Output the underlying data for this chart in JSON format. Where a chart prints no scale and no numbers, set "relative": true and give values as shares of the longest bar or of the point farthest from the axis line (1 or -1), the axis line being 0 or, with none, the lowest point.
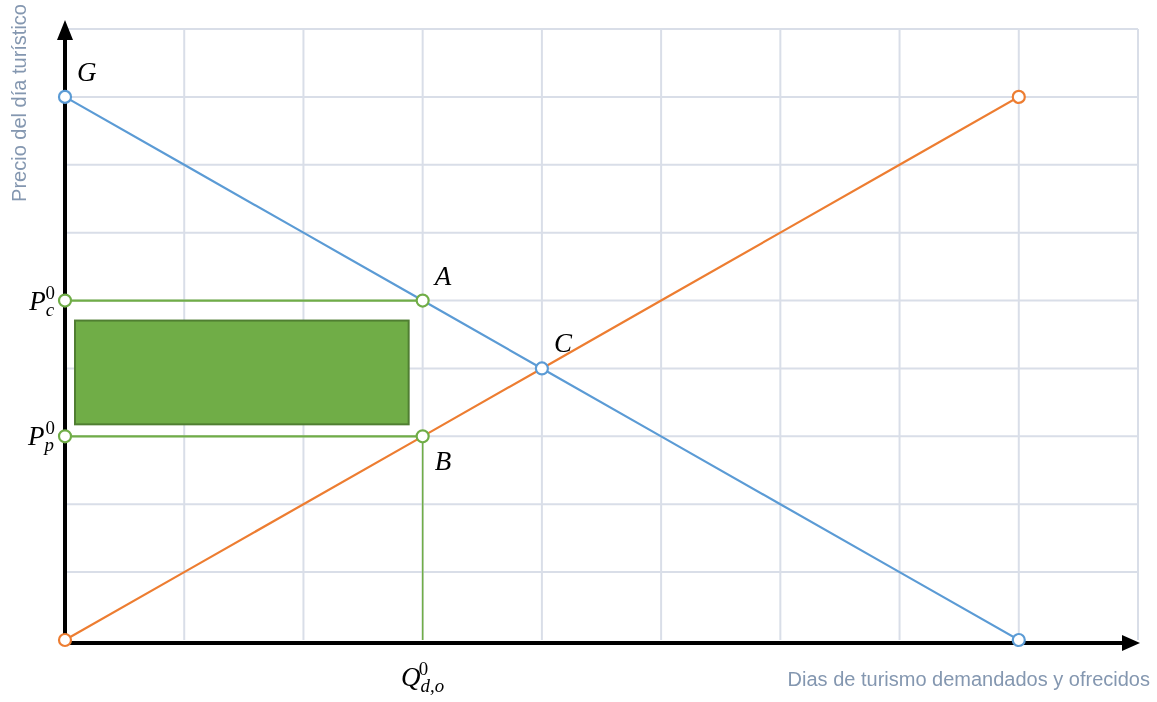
{
  "chart_data": {
    "type": "line",
    "relative": true,
    "xlabel": "Dias de turismo demandados y ofrecidos",
    "ylabel": "Precio del día turístico",
    "categories": [
      null,
      null,
      null,
      null,
      null,
      null,
      null,
      null,
      null,
      null
    ],
    "grid": true,
    "series": [
      {
        "color": "#5b9bd5",
        "values": [
          1,
          0.875,
          0.75,
          0.625,
          0.5,
          0.375,
          0.25,
          0.125,
          0,
          null
        ]
      },
      {
        "color": "#ed7d31",
        "values": [
          0,
          0.125,
          0.25,
          0.375,
          0.5,
          0.625,
          0.75,
          0.875,
          1,
          null
        ]
      },
      {
        "color": "#70ad47",
        "values": [
          0.625,
          0.625,
          0.625,
          0.625,
          null,
          null,
          null,
          null,
          null,
          null
        ]
      },
      {
        "color": "#70ad47",
        "values": [
          0.375,
          0.375,
          0.375,
          0.375,
          null,
          null,
          null,
          null,
          null,
          null
        ]
      }
    ],
    "annotations": [
      "G",
      "A",
      "B",
      "C",
      "P$_{c}$$^{0}$",
      "P$_{p}$$^{0}$",
      "Q$_{d,o}$$^{0}$"
    ]
  }
}
